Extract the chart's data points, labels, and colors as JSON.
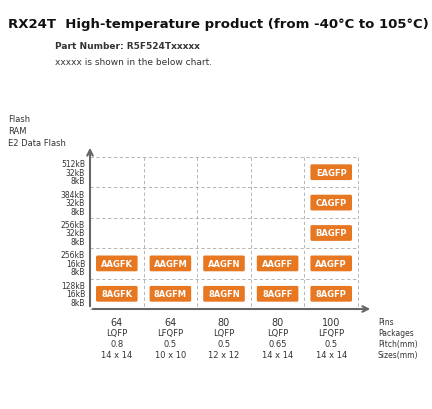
{
  "title": "RX24T  High-temperature product (from -40°C to 105°C)",
  "part_number_label": "Part Number: R5F524Txxxxx",
  "xxxxx_label": "xxxxx is shown in the below chart.",
  "y_axis_label_lines": [
    "Flash",
    "RAM",
    "E2 Data Flash"
  ],
  "x_axis_bottom_labels": [
    [
      "64",
      "LQFP",
      "0.8",
      "14 x 14"
    ],
    [
      "64",
      "LFQFP",
      "0.5",
      "10 x 10"
    ],
    [
      "80",
      "LQFP",
      "0.5",
      "12 x 12"
    ],
    [
      "80",
      "LQFP",
      "0.65",
      "14 x 14"
    ],
    [
      "100",
      "LFQFP",
      "0.5",
      "14 x 14"
    ]
  ],
  "x_axis_right_labels": [
    "Pins",
    "Packages",
    "Pitch(mm)",
    "Sizes(mm)"
  ],
  "y_row_labels": [
    [
      "512kB",
      "32kB",
      "8kB"
    ],
    [
      "384kB",
      "32kB",
      "8kB"
    ],
    [
      "256kB",
      "32kB",
      "8kB"
    ],
    [
      "256kB",
      "16kB",
      "8kB"
    ],
    [
      "128kB",
      "16kB",
      "8kB"
    ]
  ],
  "grid_cols": 5,
  "grid_rows": 5,
  "orange_color": "#E87722",
  "box_text_color": "#FFFFFF",
  "grid_line_color": "#aaaaaa",
  "arrow_color": "#666666",
  "text_color": "#333333",
  "cells": [
    {
      "row": 0,
      "col": 4,
      "label": "EAGFP"
    },
    {
      "row": 1,
      "col": 4,
      "label": "CAGFP"
    },
    {
      "row": 2,
      "col": 4,
      "label": "BAGFP"
    },
    {
      "row": 3,
      "col": 0,
      "label": "AAGFK"
    },
    {
      "row": 3,
      "col": 1,
      "label": "AAGFM"
    },
    {
      "row": 3,
      "col": 2,
      "label": "AAGFN"
    },
    {
      "row": 3,
      "col": 3,
      "label": "AAGFF"
    },
    {
      "row": 3,
      "col": 4,
      "label": "AAGFP"
    },
    {
      "row": 4,
      "col": 0,
      "label": "8AGFK"
    },
    {
      "row": 4,
      "col": 1,
      "label": "8AGFM"
    },
    {
      "row": 4,
      "col": 2,
      "label": "8AGFN"
    },
    {
      "row": 4,
      "col": 3,
      "label": "8AGFF"
    },
    {
      "row": 4,
      "col": 4,
      "label": "8AGFP"
    }
  ]
}
